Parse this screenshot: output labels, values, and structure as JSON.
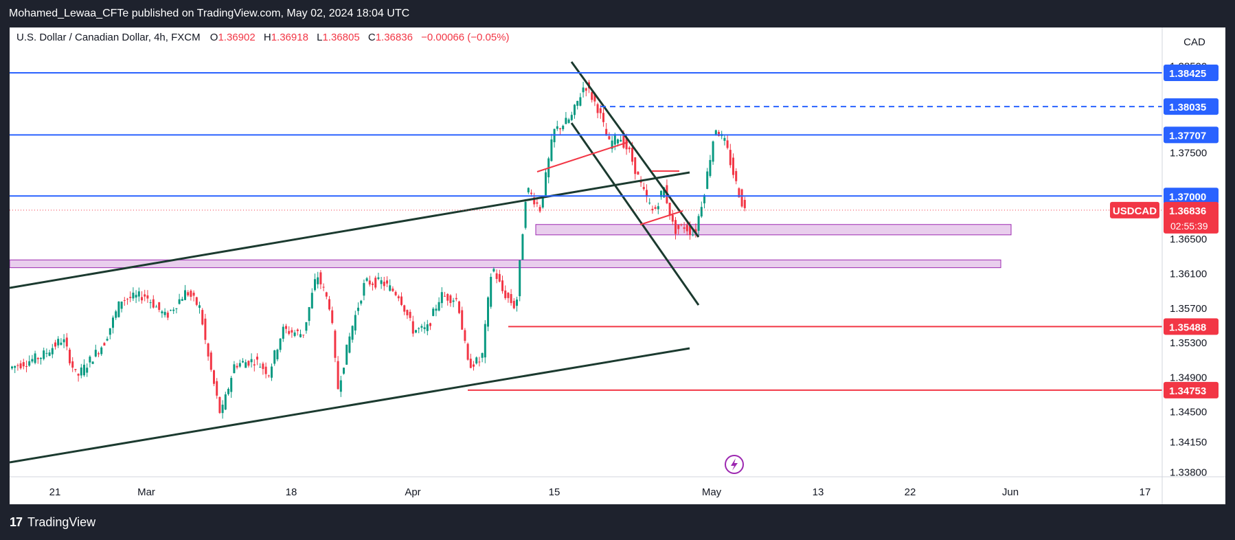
{
  "header": {
    "publisher_line": "Mohamed_Lewaa_CFTe published on TradingView.com, May 02, 2024 18:04 UTC"
  },
  "footer": {
    "brand": "TradingView",
    "logo_glyph": "17"
  },
  "chart_data": {
    "type": "candlestick",
    "symbol": "U.S. Dollar / Canadian Dollar, 4h, FXCM",
    "ticker": "USDCAD",
    "currency": "CAD",
    "ohlc": {
      "open_label": "O",
      "open": "1.36902",
      "high_label": "H",
      "high": "1.36918",
      "low_label": "L",
      "low": "1.36805",
      "close_label": "C",
      "close": "1.36836",
      "change": "−0.00066 (−0.05%)"
    },
    "countdown": "02:55:39",
    "ylim": [
      1.3375,
      1.3895
    ],
    "y_ticks": [
      "1.38500",
      "1.37500",
      "1.36500",
      "1.36100",
      "1.35700",
      "1.35300",
      "1.34900",
      "1.34500",
      "1.34150",
      "1.33800"
    ],
    "x_ticks": [
      "21",
      "Mar",
      "18",
      "Apr",
      "15",
      "May",
      "13",
      "22",
      "Jun",
      "17"
    ],
    "price_levels": [
      {
        "label": "1.38425",
        "value": 1.38425,
        "color": "#2962ff",
        "style": "solid"
      },
      {
        "label": "1.38035",
        "value": 1.38035,
        "color": "#2962ff",
        "style": "dashed"
      },
      {
        "label": "1.37707",
        "value": 1.37707,
        "color": "#2962ff",
        "style": "solid"
      },
      {
        "label": "1.37000",
        "value": 1.37,
        "color": "#2962ff",
        "style": "solid"
      },
      {
        "label": "1.35488",
        "value": 1.35488,
        "color": "#f23645",
        "style": "solid"
      },
      {
        "label": "1.34753",
        "value": 1.34753,
        "color": "#f23645",
        "style": "solid"
      }
    ],
    "current_price": {
      "label": "1.36836",
      "value": 1.36836,
      "color": "#f23645"
    },
    "zones": [
      {
        "y_top": 1.3667,
        "y_bottom": 1.3655,
        "color": "#e1bee7"
      },
      {
        "y_top": 1.3626,
        "y_bottom": 1.3617,
        "color": "#e1bee7"
      }
    ],
    "colors": {
      "up": "#089981",
      "down": "#f23645",
      "trendline": "#1b3a2f",
      "level_blue": "#2962ff",
      "level_red": "#f23645",
      "zone_border": "#9c27b0"
    }
  }
}
